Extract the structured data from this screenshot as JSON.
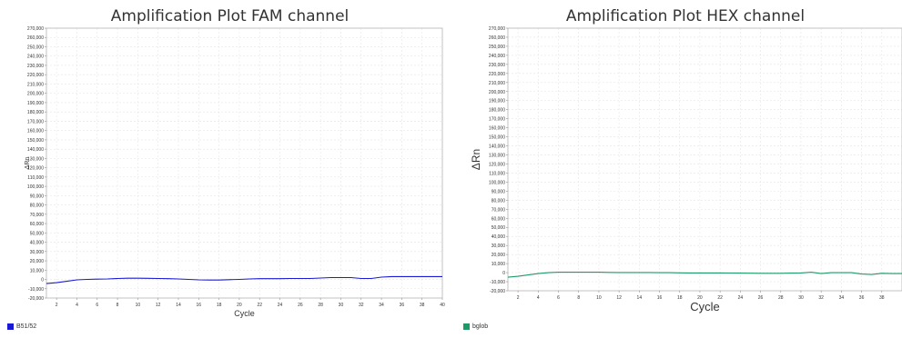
{
  "chart_data": [
    {
      "type": "line",
      "title": "Amplification Plot FAM channel",
      "xlabel": "Cycle",
      "ylabel": "ΔRn",
      "xlim": [
        1,
        40
      ],
      "ylim": [
        -20000,
        270000
      ],
      "xticks": [
        2,
        4,
        6,
        8,
        10,
        12,
        14,
        16,
        18,
        20,
        22,
        24,
        26,
        28,
        30,
        32,
        34,
        36,
        38,
        40
      ],
      "ytick_step": 10000,
      "grid": true,
      "legend_position": "bottom-left",
      "series": [
        {
          "name": "B51/52",
          "color": "#1a1ad6",
          "x": [
            1,
            2,
            3,
            4,
            5,
            6,
            7,
            8,
            9,
            10,
            11,
            12,
            13,
            14,
            15,
            16,
            17,
            18,
            19,
            20,
            21,
            22,
            23,
            24,
            25,
            26,
            27,
            28,
            29,
            30,
            31,
            32,
            33,
            34,
            35,
            36,
            37,
            38,
            39,
            40
          ],
          "values": [
            -4500,
            -3500,
            -2000,
            -500,
            0,
            300,
            500,
            1000,
            1300,
            1300,
            1200,
            1000,
            800,
            500,
            0,
            -500,
            -700,
            -700,
            -300,
            0,
            500,
            800,
            800,
            800,
            1000,
            1000,
            1000,
            1500,
            2000,
            2000,
            2000,
            1000,
            1000,
            2500,
            3000,
            3000,
            3000,
            3000,
            3000,
            3000
          ]
        }
      ]
    },
    {
      "type": "line",
      "title": "Amplification Plot HEX channel",
      "xlabel": "Cycle",
      "ylabel": "ΔRn",
      "xlim": [
        1,
        40
      ],
      "ylim": [
        -20000,
        270000
      ],
      "xticks": [
        2,
        4,
        6,
        8,
        10,
        12,
        14,
        16,
        18,
        20,
        22,
        24,
        26,
        28,
        30,
        32,
        34,
        36,
        38
      ],
      "ytick_step": 10000,
      "grid": true,
      "legend_position": "bottom-left",
      "series": [
        {
          "name": "bglob",
          "color": "#1e9a66",
          "x": [
            1,
            2,
            3,
            4,
            5,
            6,
            7,
            8,
            9,
            10,
            11,
            12,
            13,
            14,
            15,
            16,
            17,
            18,
            19,
            20,
            21,
            22,
            23,
            24,
            25,
            26,
            27,
            28,
            29,
            30,
            31,
            32,
            33,
            34,
            35,
            36,
            37,
            38,
            39,
            40
          ],
          "values": [
            -5000,
            -4000,
            -2500,
            -1000,
            0,
            500,
            500,
            500,
            500,
            500,
            300,
            200,
            200,
            200,
            200,
            0,
            0,
            -200,
            -300,
            -300,
            -300,
            -300,
            -400,
            -500,
            -600,
            -700,
            -700,
            -700,
            -500,
            -300,
            500,
            -1000,
            0,
            0,
            0,
            -1500,
            -2000,
            -700,
            -1000,
            -1000
          ]
        }
      ]
    }
  ]
}
